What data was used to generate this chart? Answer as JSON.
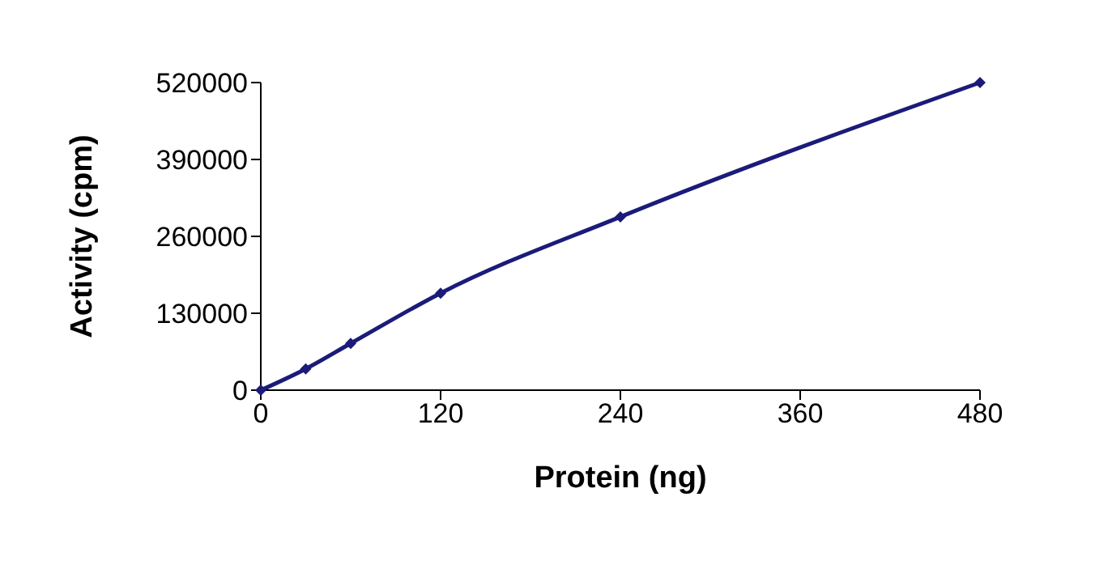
{
  "chart_data": {
    "type": "line",
    "xlabel": "Protein (ng)",
    "ylabel": "Activity (cpm)",
    "x": [
      0,
      30,
      60,
      120,
      240,
      480
    ],
    "series": [
      {
        "color": "#1b1b7a",
        "values": [
          0,
          36000,
          79000,
          164000,
          293000,
          520000
        ]
      }
    ],
    "xlim": [
      0,
      480
    ],
    "xticks": [
      0,
      120,
      240,
      360,
      480
    ],
    "ylim": [
      0,
      520000
    ],
    "yticks": [
      0,
      130000,
      260000,
      390000,
      520000
    ],
    "marker": "diamond",
    "line_style": "solid"
  }
}
